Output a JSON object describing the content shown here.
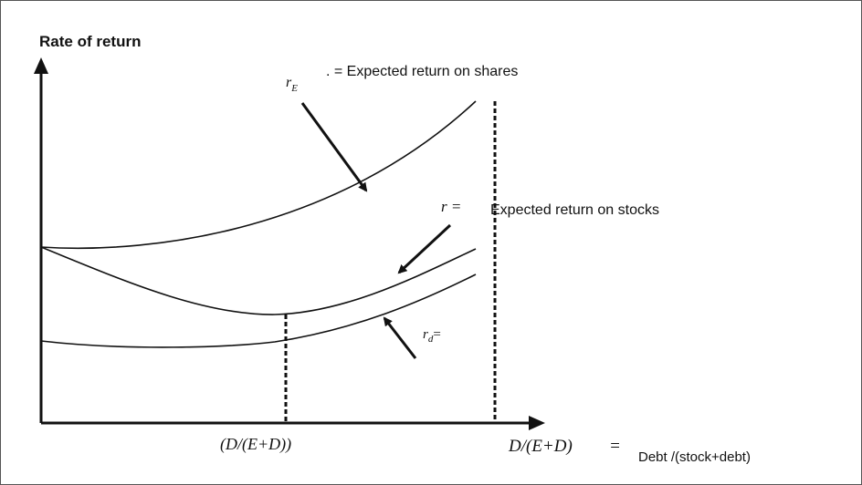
{
  "diagram": {
    "y_axis_label": "Rate of return",
    "x_axis_label": "D/(E+D)",
    "x_axis_eq": "=",
    "x_axis_desc": "Debt /(stock+debt)",
    "min_point_label": "(D/(E+D))",
    "curves": [
      {
        "id": "re",
        "symbol": "r",
        "subscript": "E",
        "label_tail": ". = Expected return on shares"
      },
      {
        "id": "r",
        "symbol": "r =",
        "label_tail": "Expected return on stocks"
      },
      {
        "id": "rd",
        "symbol": "r",
        "subscript": "d",
        "label_tail": "="
      }
    ]
  }
}
